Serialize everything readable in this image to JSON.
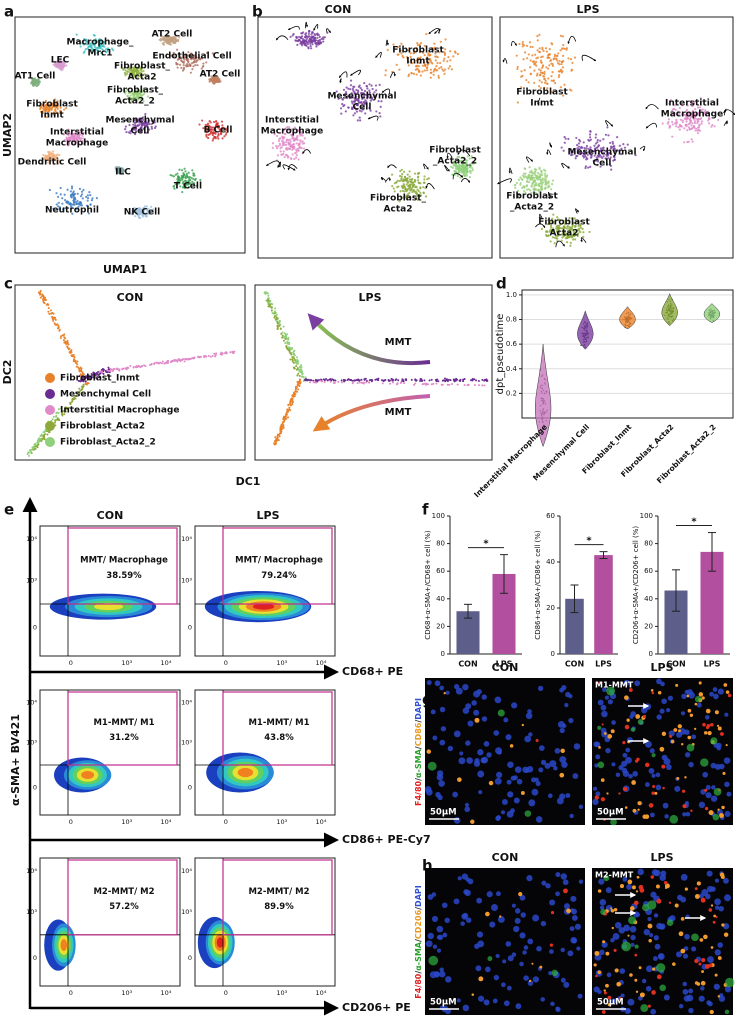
{
  "panel_labels": [
    "a",
    "b",
    "c",
    "d",
    "e",
    "f",
    "g",
    "h"
  ],
  "a": {
    "x_label": "UMAP1",
    "y_label": "UMAP2",
    "clusters": [
      [
        "Macrophage_",
        "Mrc1"
      ],
      [
        "AT2 Cell"
      ],
      [
        "LEC"
      ],
      [
        "AT1 Cell"
      ],
      [
        "Endothelial Cell"
      ],
      [
        "Fibroblast_",
        "Acta2"
      ],
      [
        "Fibroblast_",
        "Acta2_2"
      ],
      [
        "AT2 Cell"
      ],
      [
        "Fibroblast",
        "Inmt"
      ],
      [
        "Mesenchymal",
        "Cell"
      ],
      [
        "B Cell"
      ],
      [
        "Interstitial",
        "Macrophage"
      ],
      [
        "Dendritic Cell"
      ],
      [
        "ILC"
      ],
      [
        "T Cell"
      ],
      [
        "Neutrophil"
      ],
      [
        "NK Cell"
      ]
    ]
  },
  "b": {
    "titles": [
      "CON",
      "LPS"
    ],
    "con_labels": [
      [
        "Fibroblast",
        "Inmt"
      ],
      [
        "Mesenchymal",
        "Cell"
      ],
      [
        "Interstitial",
        "Macrophage"
      ],
      [
        "Fibroblast",
        "_Acta2_2"
      ],
      [
        "Fibroblast_",
        "Acta2"
      ]
    ],
    "lps_labels": [
      [
        "Fibroblast",
        "Inmt"
      ],
      [
        "Interstitial",
        "Macrophage"
      ],
      [
        "Mesenchymal",
        "Cell"
      ],
      [
        "Fibroblast",
        "_Acta2_2"
      ],
      [
        "Fibroblast",
        "Acta2"
      ]
    ]
  },
  "c": {
    "titles": [
      "CON",
      "LPS"
    ],
    "x_label": "DC1",
    "y_label": "DC2",
    "legend": [
      {
        "name": "Fibroblast_Inmt",
        "color": "#e8822a"
      },
      {
        "name": "Mesenchymal Cell",
        "color": "#6a2c91"
      },
      {
        "name": "Interstitial Macrophage",
        "color": "#e08ac8"
      },
      {
        "name": "Fibroblast_Acta2",
        "color": "#8fa83a"
      },
      {
        "name": "Fibroblast_Acta2_2",
        "color": "#8fd07a"
      }
    ],
    "arrows": [
      "MMT",
      "MMT"
    ]
  },
  "e": {
    "titles": [
      "CON",
      "LPS"
    ],
    "y_axis": "α-SMA+  BV421",
    "ticks": [
      "0",
      "10³",
      "10⁴"
    ],
    "rows": [
      {
        "x_axis": "CD68+  PE",
        "gate": "MMT/ Macrophage",
        "percent": [
          "38.59%",
          "79.24%"
        ]
      },
      {
        "x_axis": "CD86+ PE-Cy7",
        "gate": [
          "M1-MMT/ M1",
          "M1-MMT/ M1"
        ],
        "percent": [
          "31.2%",
          "43.8%"
        ]
      },
      {
        "x_axis": "CD206+  PE",
        "gate": [
          "M2-MMT/ M2",
          "M2-MMT/ M2"
        ],
        "percent": [
          "57.2%",
          "89.9%"
        ]
      }
    ]
  },
  "g": {
    "titles": [
      "CON",
      "LPS"
    ],
    "stain": [
      "F4/80",
      "/",
      "α-SMA",
      "/",
      "CD86",
      "/",
      "DAPI"
    ],
    "inset": "M1-MMT",
    "scale": [
      "50μM",
      "50μM"
    ]
  },
  "h": {
    "titles": [
      "CON",
      "LPS"
    ],
    "stain": [
      "F4/80",
      "/",
      "α-SMA",
      "/",
      "CD206",
      "/",
      "DAPI"
    ],
    "inset": "M2-MMT",
    "scale": [
      "50μM",
      "50μM"
    ]
  },
  "chart_data": [
    {
      "type": "violin",
      "y_label": "dpt_pseudotime",
      "categories": [
        "Interstitial Macrophage",
        "Mesenchymal Cell",
        "Fibroblast_Inmt",
        "Fibroblast_Acta2",
        "Fibroblast_Acta2_2"
      ],
      "values": [
        0.12,
        0.69,
        0.8,
        0.86,
        0.84
      ],
      "colors": [
        "#c878be",
        "#7a3fa0",
        "#e8822a",
        "#8aaa3a",
        "#8fd07a"
      ],
      "ylim": [
        0,
        1.04
      ],
      "yticks": [
        0.2,
        0.4,
        0.6,
        0.8,
        {
          "value": 1,
          "label": "1.0"
        }
      ],
      "grid": true
    },
    {
      "type": "bar",
      "y_label": "CD68+α-SMA+/CD68+ cell (%)",
      "categories": [
        "CON",
        "LPS"
      ],
      "values": [
        31,
        58
      ],
      "errors": [
        5,
        14
      ],
      "colors": [
        "#5e5e8a",
        "#b2509f"
      ],
      "ylim": [
        0,
        100
      ],
      "yticks": [
        0,
        20,
        40,
        60,
        80,
        100
      ],
      "annotation": "*"
    },
    {
      "type": "bar",
      "y_label": "CD86+α-SMA+/CD86+ cell (%)",
      "categories": [
        "CON",
        "LPS"
      ],
      "values": [
        24,
        43
      ],
      "errors": [
        6,
        1.5
      ],
      "colors": [
        "#5e5e8a",
        "#b2509f"
      ],
      "ylim": [
        0,
        60
      ],
      "yticks": [
        0,
        20,
        40,
        60
      ],
      "annotation": "*"
    },
    {
      "type": "bar",
      "y_label": "CD206+α-SMA+/CD206+ cell (%)",
      "categories": [
        "CON",
        "LPS"
      ],
      "values": [
        46,
        74
      ],
      "errors": [
        15,
        14
      ],
      "colors": [
        "#5e5e8a",
        "#b2509f"
      ],
      "ylim": [
        0,
        100
      ],
      "yticks": [
        0,
        20,
        40,
        60,
        80,
        100
      ],
      "annotation": "*"
    }
  ]
}
